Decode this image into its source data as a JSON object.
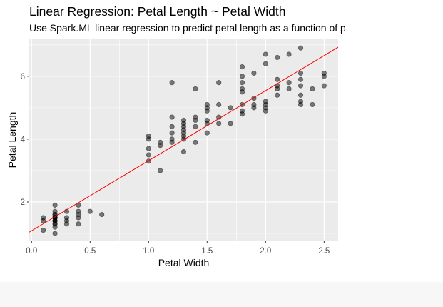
{
  "chart_data": {
    "type": "scatter",
    "title": "Linear Regression: Petal Length ~ Petal Width",
    "subtitle": "Use Spark.ML linear regression to predict petal length as a function of petal width.",
    "xlabel": "Petal Width",
    "ylabel": "Petal Length",
    "xlim": [
      -0.02,
      2.62
    ],
    "ylim": [
      0.75,
      7.2
    ],
    "x_ticks": [
      0.0,
      0.5,
      1.0,
      1.5,
      2.0,
      2.5
    ],
    "x_tick_labels": [
      "0.0",
      "0.5",
      "1.0",
      "1.5",
      "2.0",
      "2.5"
    ],
    "y_ticks": [
      2,
      4,
      6
    ],
    "y_tick_labels": [
      "2",
      "4",
      "6"
    ],
    "grid": true,
    "legend": "none",
    "colors": {
      "panel": "#ebebeb",
      "grid": "#ffffff",
      "point_fill": "#000000",
      "point_alpha": 0.5,
      "line": "#ff0000",
      "axis_text": "#4d4d4d"
    },
    "regression_line": {
      "intercept": 1.084,
      "slope": 2.23
    },
    "points": [
      [
        0.1,
        1.4
      ],
      [
        0.1,
        1.5
      ],
      [
        0.1,
        1.1
      ],
      [
        0.2,
        1.4
      ],
      [
        0.2,
        1.3
      ],
      [
        0.2,
        1.5
      ],
      [
        0.2,
        1.4
      ],
      [
        0.2,
        1.5
      ],
      [
        0.2,
        1.6
      ],
      [
        0.2,
        1.4
      ],
      [
        0.2,
        1.2
      ],
      [
        0.2,
        1.3
      ],
      [
        0.2,
        1.5
      ],
      [
        0.2,
        1.7
      ],
      [
        0.2,
        1.9
      ],
      [
        0.2,
        1.6
      ],
      [
        0.2,
        1.0
      ],
      [
        0.2,
        1.5
      ],
      [
        0.3,
        1.4
      ],
      [
        0.3,
        1.3
      ],
      [
        0.3,
        1.7
      ],
      [
        0.3,
        1.5
      ],
      [
        0.4,
        1.5
      ],
      [
        0.4,
        1.7
      ],
      [
        0.4,
        1.9
      ],
      [
        0.4,
        1.3
      ],
      [
        0.4,
        1.6
      ],
      [
        0.5,
        1.7
      ],
      [
        0.6,
        1.6
      ],
      [
        1.0,
        3.3
      ],
      [
        1.0,
        3.5
      ],
      [
        1.0,
        3.7
      ],
      [
        1.0,
        4.0
      ],
      [
        1.0,
        4.1
      ],
      [
        1.1,
        3.0
      ],
      [
        1.1,
        3.8
      ],
      [
        1.1,
        3.9
      ],
      [
        1.2,
        3.9
      ],
      [
        1.2,
        4.0
      ],
      [
        1.2,
        4.4
      ],
      [
        1.2,
        4.7
      ],
      [
        1.2,
        4.2
      ],
      [
        1.2,
        5.8
      ],
      [
        1.3,
        4.0
      ],
      [
        1.3,
        4.1
      ],
      [
        1.3,
        4.2
      ],
      [
        1.3,
        4.3
      ],
      [
        1.3,
        4.4
      ],
      [
        1.3,
        4.5
      ],
      [
        1.3,
        4.6
      ],
      [
        1.3,
        3.6
      ],
      [
        1.4,
        3.9
      ],
      [
        1.4,
        4.4
      ],
      [
        1.4,
        4.6
      ],
      [
        1.4,
        4.7
      ],
      [
        1.4,
        5.6
      ],
      [
        1.5,
        4.2
      ],
      [
        1.5,
        4.5
      ],
      [
        1.5,
        4.6
      ],
      [
        1.5,
        4.9
      ],
      [
        1.5,
        5.0
      ],
      [
        1.5,
        5.1
      ],
      [
        1.6,
        4.5
      ],
      [
        1.6,
        4.7
      ],
      [
        1.6,
        5.1
      ],
      [
        1.6,
        5.8
      ],
      [
        1.7,
        4.5
      ],
      [
        1.7,
        5.0
      ],
      [
        1.8,
        4.8
      ],
      [
        1.8,
        4.9
      ],
      [
        1.8,
        5.1
      ],
      [
        1.8,
        5.5
      ],
      [
        1.8,
        5.6
      ],
      [
        1.8,
        5.8
      ],
      [
        1.8,
        6.0
      ],
      [
        1.8,
        6.3
      ],
      [
        1.9,
        5.0
      ],
      [
        1.9,
        5.1
      ],
      [
        1.9,
        5.3
      ],
      [
        1.9,
        6.1
      ],
      [
        2.0,
        4.9
      ],
      [
        2.0,
        5.0
      ],
      [
        2.0,
        5.1
      ],
      [
        2.0,
        5.2
      ],
      [
        2.0,
        6.4
      ],
      [
        2.0,
        6.7
      ],
      [
        2.1,
        5.4
      ],
      [
        2.1,
        5.6
      ],
      [
        2.1,
        5.7
      ],
      [
        2.1,
        5.9
      ],
      [
        2.1,
        6.6
      ],
      [
        2.2,
        5.6
      ],
      [
        2.2,
        5.8
      ],
      [
        2.2,
        6.7
      ],
      [
        2.3,
        5.1
      ],
      [
        2.3,
        5.2
      ],
      [
        2.3,
        5.4
      ],
      [
        2.3,
        5.7
      ],
      [
        2.3,
        5.9
      ],
      [
        2.3,
        6.1
      ],
      [
        2.3,
        6.9
      ],
      [
        2.4,
        5.1
      ],
      [
        2.4,
        5.6
      ],
      [
        2.5,
        5.7
      ],
      [
        2.5,
        6.0
      ],
      [
        2.5,
        6.1
      ]
    ]
  }
}
